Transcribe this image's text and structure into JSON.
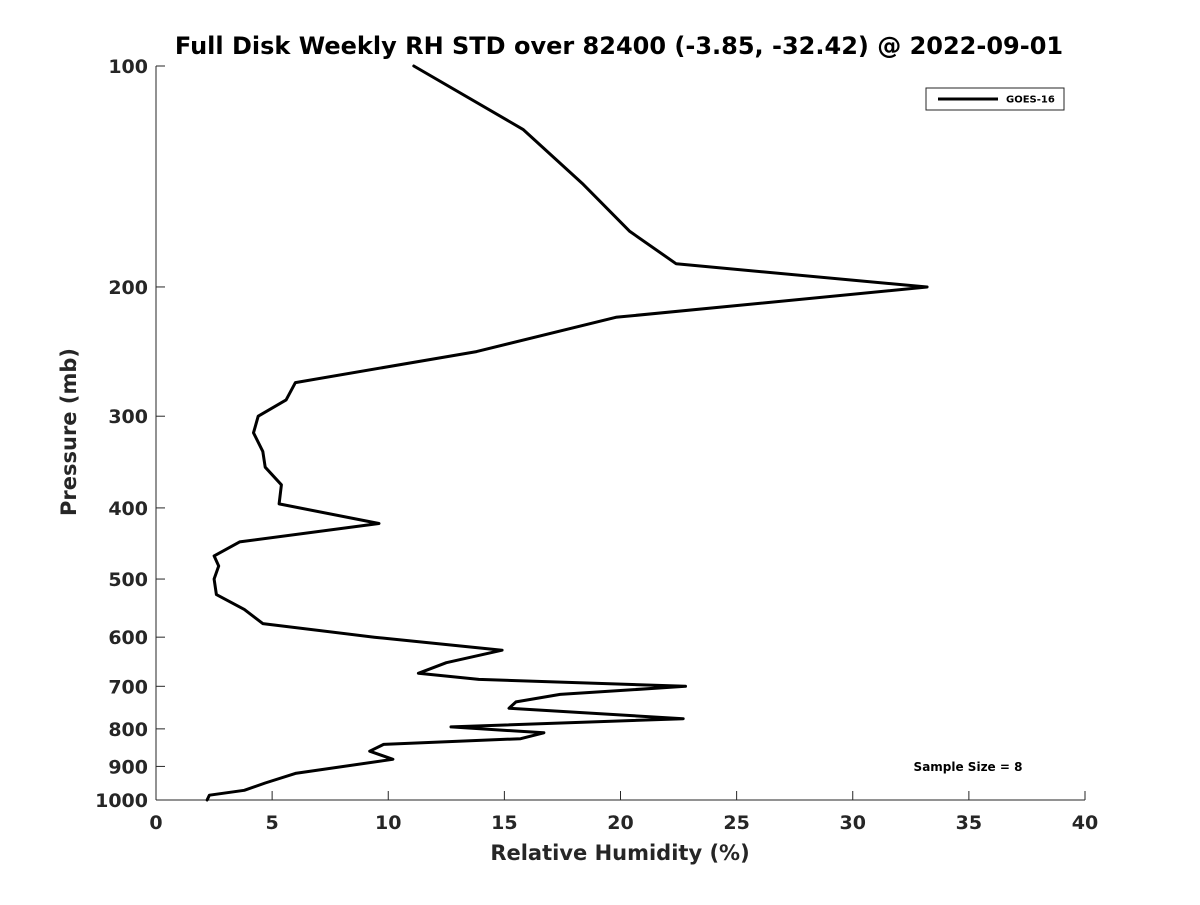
{
  "chart_data": {
    "type": "line",
    "title": "Full Disk Weekly RH STD over 82400 (-3.85, -32.42) @ 2022-09-01",
    "xlabel": "Relative Humidity (%)",
    "ylabel": "Pressure (mb)",
    "xlim": [
      0,
      40
    ],
    "ylim": [
      1000,
      100
    ],
    "y_scale": "log",
    "y_inverted": true,
    "grid": false,
    "xticks": [
      0,
      5,
      10,
      15,
      20,
      25,
      30,
      35,
      40
    ],
    "yticks": [
      100,
      200,
      300,
      400,
      500,
      600,
      700,
      800,
      900,
      1000
    ],
    "legend": {
      "position": "top-right",
      "entries": [
        "GOES-16"
      ]
    },
    "annotation": "Sample Size = 8",
    "series": [
      {
        "name": "GOES-16",
        "color": "#000000",
        "x": [
          11.1,
          15.8,
          18.4,
          20.4,
          22.4,
          33.2,
          19.8,
          13.8,
          6.0,
          5.6,
          4.4,
          4.2,
          4.6,
          4.7,
          5.4,
          5.3,
          9.6,
          3.6,
          2.5,
          2.7,
          2.5,
          2.6,
          3.8,
          4.6,
          9.4,
          14.9,
          12.5,
          11.3,
          13.9,
          22.8,
          17.4,
          15.5,
          15.2,
          22.7,
          12.7,
          16.7,
          15.7,
          9.8,
          9.2,
          10.2,
          6.0,
          4.7,
          3.8,
          2.3,
          2.2
        ],
        "y": [
          100,
          122,
          145,
          168,
          186,
          200,
          220,
          245,
          270,
          285,
          300,
          316,
          335,
          352,
          372,
          395,
          420,
          445,
          465,
          480,
          500,
          525,
          550,
          575,
          600,
          625,
          650,
          672,
          685,
          700,
          718,
          735,
          750,
          775,
          795,
          810,
          825,
          840,
          858,
          880,
          920,
          948,
          970,
          985,
          1000
        ]
      }
    ]
  }
}
